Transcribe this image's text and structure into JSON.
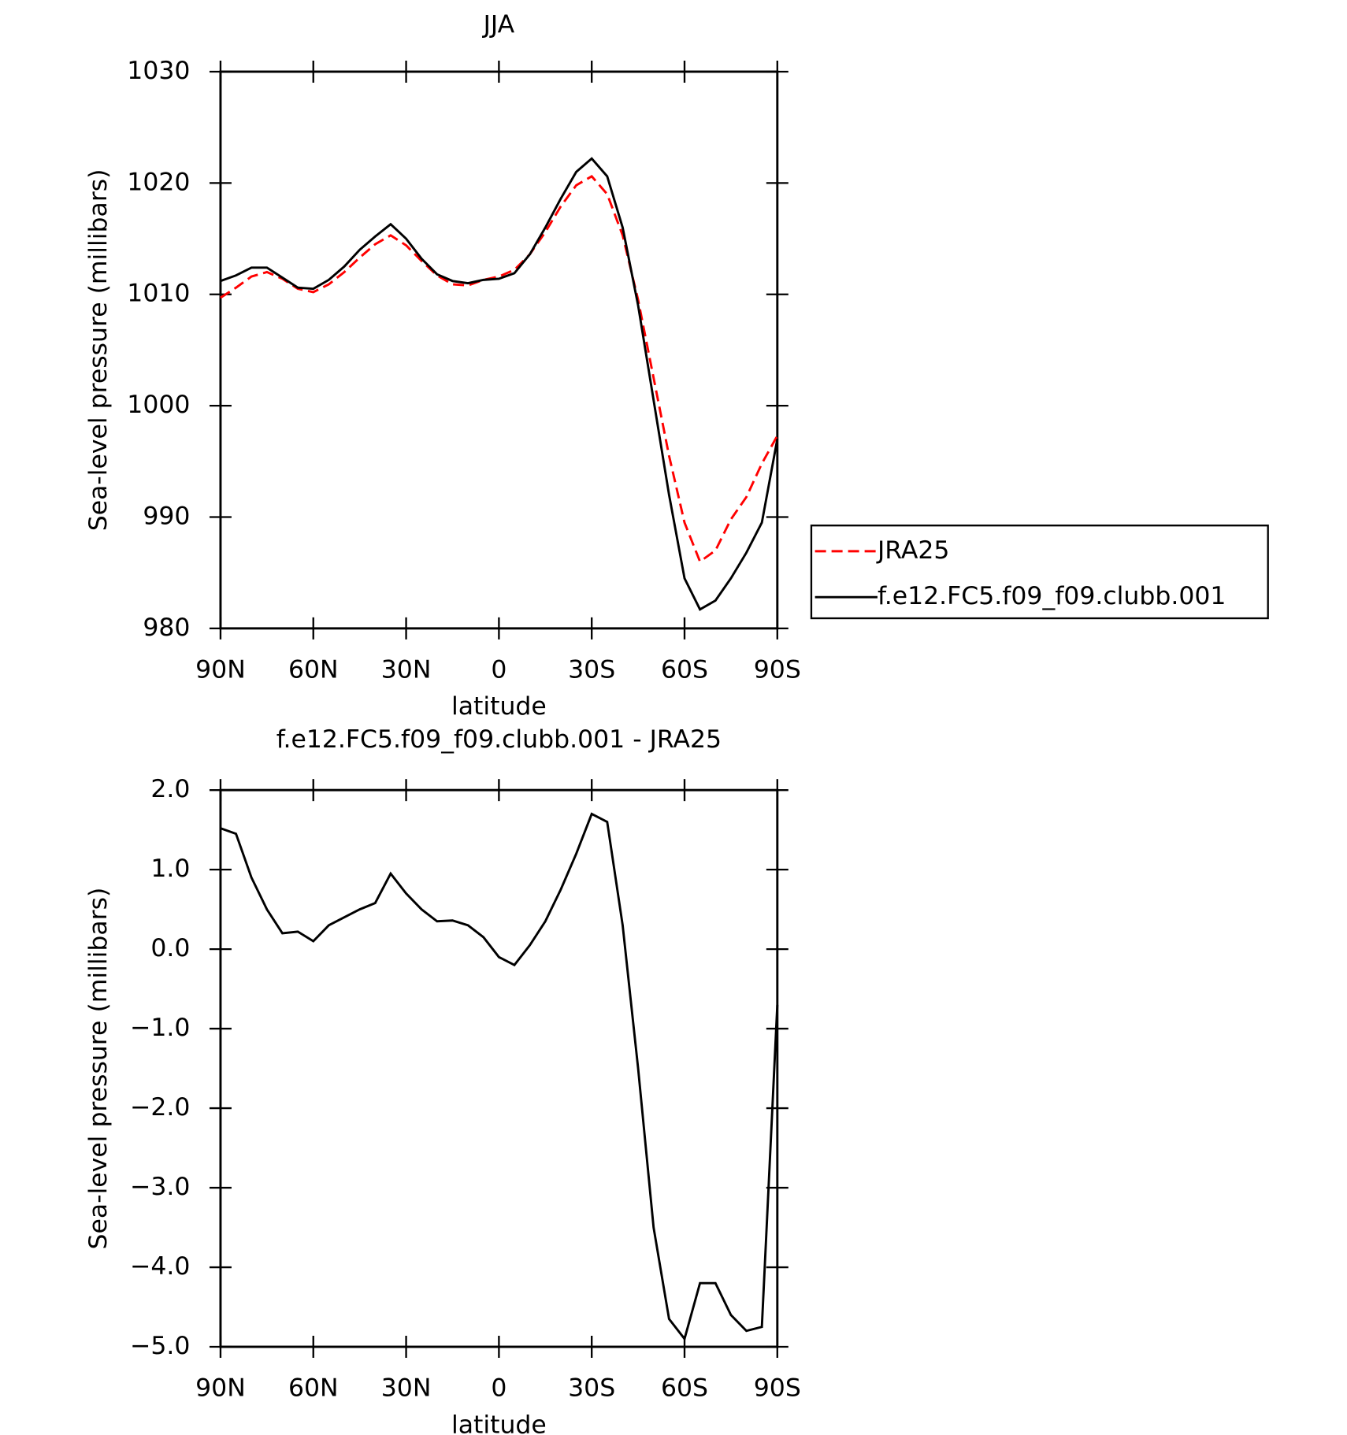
{
  "chart_data": [
    {
      "type": "line",
      "title": "JJA",
      "x_label": "latitude",
      "y_label": "Sea-level pressure (millibars)",
      "x": [
        90,
        85,
        80,
        75,
        70,
        65,
        60,
        55,
        50,
        45,
        40,
        35,
        30,
        25,
        20,
        15,
        10,
        5,
        0,
        -5,
        -10,
        -15,
        -20,
        -25,
        -30,
        -35,
        -40,
        -45,
        -50,
        -55,
        -60,
        -65,
        -70,
        -75,
        -80,
        -85,
        -90
      ],
      "series": [
        {
          "name": "JRA25",
          "color": "#ff0000",
          "dash": true,
          "values": [
            1009.7,
            1010.6,
            1011.6,
            1012.0,
            1011.4,
            1010.5,
            1010.2,
            1010.9,
            1012.0,
            1013.3,
            1014.5,
            1015.3,
            1014.4,
            1013.0,
            1011.7,
            1010.9,
            1010.8,
            1011.3,
            1011.6,
            1012.2,
            1013.6,
            1015.6,
            1017.9,
            1019.8,
            1020.6,
            1019.0,
            1015.3,
            1009.5,
            1002.5,
            995.5,
            989.5,
            986.0,
            987.0,
            989.8,
            991.8,
            994.8,
            997.3
          ]
        },
        {
          "name": "f.e12.FC5.f09_f09.clubb.001",
          "color": "#000000",
          "dash": false,
          "values": [
            1011.2,
            1011.7,
            1012.4,
            1012.4,
            1011.5,
            1010.6,
            1010.5,
            1011.3,
            1012.5,
            1014.0,
            1015.2,
            1016.3,
            1015.0,
            1013.2,
            1011.8,
            1011.2,
            1011.0,
            1011.3,
            1011.4,
            1011.9,
            1013.6,
            1016.0,
            1018.6,
            1021.0,
            1022.2,
            1020.6,
            1016.0,
            1009.0,
            1000.5,
            992.0,
            984.5,
            981.7,
            982.5,
            984.5,
            986.8,
            989.5,
            997.0
          ]
        }
      ],
      "xlim": [
        90,
        -90
      ],
      "xticks": [
        {
          "value": 90,
          "label": "90N"
        },
        {
          "value": 60,
          "label": "60N"
        },
        {
          "value": 30,
          "label": "30N"
        },
        0,
        {
          "value": -30,
          "label": "30S"
        },
        {
          "value": -60,
          "label": "60S"
        },
        {
          "value": -90,
          "label": "90S"
        }
      ],
      "ylim": [
        980,
        1030
      ],
      "yticks": [
        980,
        990,
        1000,
        1010,
        1020,
        1030
      ],
      "legend": "right"
    },
    {
      "type": "line",
      "title": "f.e12.FC5.f09_f09.clubb.001 - JRA25",
      "x_label": "latitude",
      "y_label": "Sea-level pressure (millibars)",
      "x": [
        90,
        85,
        80,
        75,
        70,
        65,
        60,
        55,
        50,
        45,
        40,
        35,
        30,
        25,
        20,
        15,
        10,
        5,
        0,
        -5,
        -10,
        -15,
        -20,
        -25,
        -30,
        -35,
        -40,
        -45,
        -50,
        -55,
        -60,
        -65,
        -70,
        -75,
        -80,
        -85,
        -90
      ],
      "series": [
        {
          "color": "#000000",
          "dash": false,
          "values": [
            1.52,
            1.45,
            0.9,
            0.5,
            0.2,
            0.22,
            0.1,
            0.3,
            0.4,
            0.5,
            0.58,
            0.95,
            0.7,
            0.5,
            0.35,
            0.36,
            0.3,
            0.15,
            -0.1,
            -0.2,
            0.05,
            0.35,
            0.75,
            1.2,
            1.7,
            1.6,
            0.3,
            -1.5,
            -3.5,
            -4.65,
            -4.9,
            -4.2,
            -4.2,
            -4.6,
            -4.8,
            -4.75,
            -0.7
          ]
        }
      ],
      "xlim": [
        90,
        -90
      ],
      "xticks": [
        {
          "value": 90,
          "label": "90N"
        },
        {
          "value": 60,
          "label": "60N"
        },
        {
          "value": 30,
          "label": "30N"
        },
        0,
        {
          "value": -30,
          "label": "30S"
        },
        {
          "value": -60,
          "label": "60S"
        },
        {
          "value": -90,
          "label": "90S"
        }
      ],
      "ylim": [
        -5,
        2
      ],
      "yticks": [
        {
          "value": -5,
          "label": "−5.0"
        },
        {
          "value": -4,
          "label": "−4.0"
        },
        {
          "value": -3,
          "label": "−3.0"
        },
        {
          "value": -2,
          "label": "−2.0"
        },
        {
          "value": -1,
          "label": "−1.0"
        },
        {
          "value": 0,
          "label": "0.0"
        },
        {
          "value": 1,
          "label": "1.0"
        },
        {
          "value": 2,
          "label": "2.0"
        }
      ]
    }
  ]
}
